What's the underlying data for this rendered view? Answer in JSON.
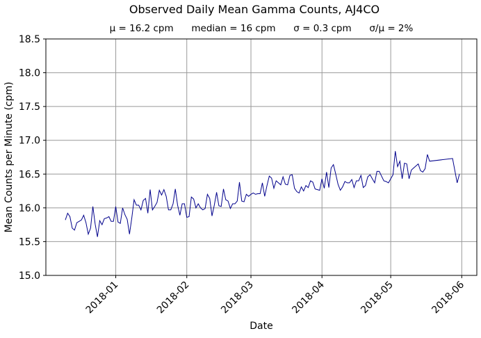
{
  "chart_data": {
    "type": "line",
    "title": "Observed Daily Mean Gamma Counts, AJ4CO",
    "subtitle": "μ = 16.2 cpm      median = 16 cpm      σ = 0.3 cpm      σ/μ = 2%",
    "xlabel": "Date",
    "ylabel": "Mean Counts per Minute (cpm)",
    "ylim": [
      15.0,
      18.5
    ],
    "xlim": [
      "2017-12-01T12:00",
      "2018-06-07T14:00"
    ],
    "grid": true,
    "line_color": "#00008b",
    "yticks": [
      "15.0",
      "15.5",
      "16.0",
      "16.5",
      "17.0",
      "17.5",
      "18.0",
      "18.5"
    ],
    "xticks": [
      "2018-01",
      "2018-02",
      "2018-03",
      "2018-04",
      "2018-05",
      "2018-06"
    ],
    "x": [
      "2017-12-10",
      "2017-12-11",
      "2017-12-12",
      "2017-12-13",
      "2017-12-14",
      "2017-12-15",
      "2017-12-16",
      "2017-12-17",
      "2017-12-18",
      "2017-12-19",
      "2017-12-20",
      "2017-12-21",
      "2017-12-22",
      "2017-12-23",
      "2017-12-24",
      "2017-12-25",
      "2017-12-26",
      "2017-12-27",
      "2017-12-28",
      "2017-12-29",
      "2017-12-30",
      "2017-12-31",
      "2018-01-01",
      "2018-01-02",
      "2018-01-03",
      "2018-01-04",
      "2018-01-05",
      "2018-01-06",
      "2018-01-07",
      "2018-01-08",
      "2018-01-09",
      "2018-01-10",
      "2018-01-11",
      "2018-01-12",
      "2018-01-13",
      "2018-01-14",
      "2018-01-15",
      "2018-01-16",
      "2018-01-17",
      "2018-01-18",
      "2018-01-19",
      "2018-01-20",
      "2018-01-21",
      "2018-01-22",
      "2018-01-23",
      "2018-01-24",
      "2018-01-25",
      "2018-01-26",
      "2018-01-27",
      "2018-01-28",
      "2018-01-29",
      "2018-01-30",
      "2018-01-31",
      "2018-02-01",
      "2018-02-02",
      "2018-02-03",
      "2018-02-04",
      "2018-02-05",
      "2018-02-06",
      "2018-02-07",
      "2018-02-08",
      "2018-02-09",
      "2018-02-10",
      "2018-02-11",
      "2018-02-12",
      "2018-02-13",
      "2018-02-14",
      "2018-02-15",
      "2018-02-16",
      "2018-02-17",
      "2018-02-18",
      "2018-02-19",
      "2018-02-20",
      "2018-02-21",
      "2018-02-22",
      "2018-02-23",
      "2018-02-24",
      "2018-02-25",
      "2018-02-26",
      "2018-02-27",
      "2018-02-28",
      "2018-03-01",
      "2018-03-02",
      "2018-03-03",
      "2018-03-04",
      "2018-03-05",
      "2018-03-06",
      "2018-03-07",
      "2018-03-08",
      "2018-03-09",
      "2018-03-10",
      "2018-03-11",
      "2018-03-12",
      "2018-03-13",
      "2018-03-14",
      "2018-03-15",
      "2018-03-16",
      "2018-03-17",
      "2018-03-18",
      "2018-03-19",
      "2018-03-20",
      "2018-03-21",
      "2018-03-22",
      "2018-03-23",
      "2018-03-24",
      "2018-03-25",
      "2018-03-26",
      "2018-03-27",
      "2018-03-28",
      "2018-03-29",
      "2018-03-30",
      "2018-03-31",
      "2018-04-01",
      "2018-04-02",
      "2018-04-03",
      "2018-04-04",
      "2018-04-05",
      "2018-04-06",
      "2018-04-07",
      "2018-04-08",
      "2018-04-09",
      "2018-04-10",
      "2018-04-11",
      "2018-04-12",
      "2018-04-13",
      "2018-04-14",
      "2018-04-15",
      "2018-04-16",
      "2018-04-17",
      "2018-04-18",
      "2018-04-19",
      "2018-04-20",
      "2018-04-21",
      "2018-04-22",
      "2018-04-23",
      "2018-04-24",
      "2018-04-25",
      "2018-04-26",
      "2018-04-27",
      "2018-04-28",
      "2018-04-29",
      "2018-04-30",
      "2018-05-01",
      "2018-05-02",
      "2018-05-03",
      "2018-05-04",
      "2018-05-05",
      "2018-05-06",
      "2018-05-07",
      "2018-05-08",
      "2018-05-09",
      "2018-05-10",
      "2018-05-11",
      "2018-05-12",
      "2018-05-13",
      "2018-05-14",
      "2018-05-15",
      "2018-05-16",
      "2018-05-17",
      "2018-05-18",
      "2018-05-28",
      "2018-05-30",
      "2018-05-31"
    ],
    "y": [
      15.82,
      15.92,
      15.87,
      15.7,
      15.67,
      15.78,
      15.8,
      15.82,
      15.89,
      15.78,
      15.61,
      15.7,
      16.02,
      15.76,
      15.57,
      15.81,
      15.75,
      15.84,
      15.85,
      15.87,
      15.8,
      15.8,
      16.02,
      15.79,
      15.77,
      16.0,
      15.9,
      15.83,
      15.61,
      15.85,
      16.12,
      16.04,
      16.04,
      15.97,
      16.11,
      16.14,
      15.92,
      16.27,
      15.97,
      16.02,
      16.08,
      16.26,
      16.19,
      16.27,
      16.17,
      15.97,
      15.97,
      16.06,
      16.28,
      16.04,
      15.89,
      16.06,
      16.06,
      15.86,
      15.87,
      16.16,
      16.13,
      16.0,
      16.06,
      16.0,
      15.97,
      15.99,
      16.2,
      16.14,
      15.88,
      16.04,
      16.23,
      16.03,
      16.02,
      16.28,
      16.12,
      16.1,
      15.99,
      16.06,
      16.06,
      16.1,
      16.38,
      16.1,
      16.09,
      16.2,
      16.17,
      16.2,
      16.22,
      16.2,
      16.21,
      16.21,
      16.37,
      16.17,
      16.33,
      16.47,
      16.44,
      16.29,
      16.4,
      16.37,
      16.34,
      16.46,
      16.35,
      16.34,
      16.48,
      16.49,
      16.29,
      16.24,
      16.22,
      16.31,
      16.25,
      16.33,
      16.3,
      16.4,
      16.38,
      16.28,
      16.27,
      16.26,
      16.43,
      16.29,
      16.53,
      16.3,
      16.59,
      16.64,
      16.5,
      16.35,
      16.26,
      16.31,
      16.39,
      16.37,
      16.37,
      16.42,
      16.3,
      16.4,
      16.4,
      16.48,
      16.3,
      16.33,
      16.46,
      16.49,
      16.43,
      16.37,
      16.54,
      16.54,
      16.47,
      16.4,
      16.39,
      16.37,
      16.43,
      16.49,
      16.84,
      16.61,
      16.69,
      16.43,
      16.66,
      16.65,
      16.43,
      16.56,
      16.59,
      16.62,
      16.65,
      16.55,
      16.53,
      16.58,
      16.79,
      16.69,
      16.73,
      16.37,
      16.5
    ]
  }
}
